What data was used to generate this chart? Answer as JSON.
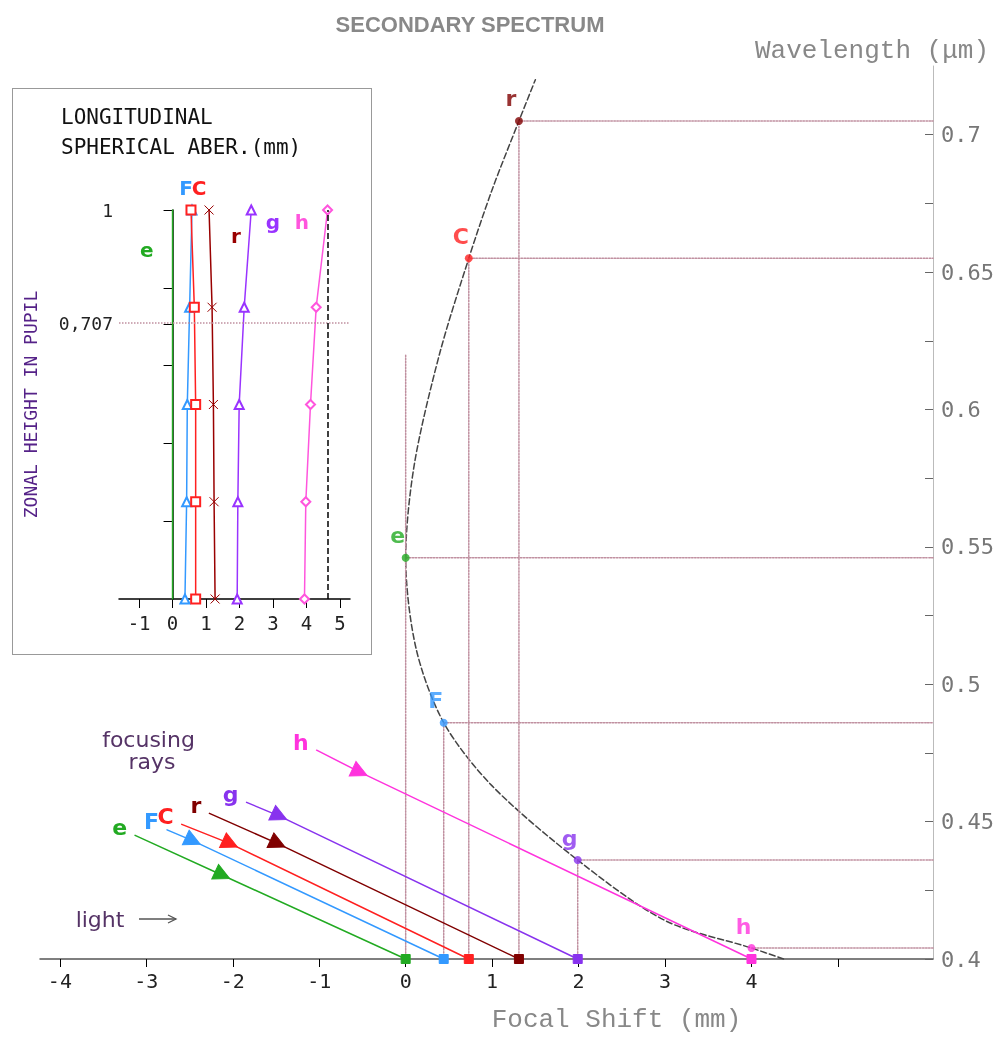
{
  "chart_data": [
    {
      "type": "line",
      "title": "SECONDARY SPECTRUM",
      "xlabel": "Focal Shift (mm)",
      "ylabel": "Wavelength (μm)",
      "xlim": [
        -4.23,
        6.1
      ],
      "xticks": [
        -4,
        -3,
        -2,
        -1,
        0,
        1,
        2,
        3,
        4,
        {
          "value": 5,
          "label": null
        }
      ],
      "ylim": [
        0.4,
        0.725
      ],
      "yticks": [
        0.4,
        {
          "value": 0.425,
          "label": null
        },
        0.45,
        {
          "value": 0.475,
          "label": null
        },
        0.5,
        {
          "value": 0.525,
          "label": null
        },
        0.55,
        {
          "value": 0.575,
          "label": null
        },
        0.6,
        {
          "value": 0.625,
          "label": null
        },
        0.65,
        {
          "value": 0.675,
          "label": null
        },
        0.7
      ],
      "grid": false,
      "legend": false,
      "annotations": [
        "focusing rays",
        "light"
      ],
      "series": [
        {
          "type": "line",
          "color": "#444444",
          "line_style": "dashed",
          "marker": "none",
          "x": [
            4.37,
            4.0,
            3.0,
            1.99,
            1.0,
            0.44,
            0.12,
            0.0,
            0.1,
            0.39,
            0.73,
            1.0,
            1.31,
            1.5
          ],
          "values": [
            0.4,
            0.404,
            0.414,
            0.436,
            0.463,
            0.486,
            0.513,
            0.546,
            0.58,
            0.62,
            0.655,
            0.68,
            0.705,
            0.72
          ]
        },
        {
          "type": "line",
          "color": "#c090a0",
          "line_style": "dotted",
          "marker": "none",
          "x": [
            1.31,
            1.31,
            6.1
          ],
          "values": [
            0.4,
            0.705,
            0.705
          ]
        },
        {
          "type": "line",
          "color": "#c090a0",
          "line_style": "dotted",
          "marker": "none",
          "x": [
            0.73,
            0.73,
            6.1
          ],
          "values": [
            0.4,
            0.655,
            0.655
          ]
        },
        {
          "type": "line",
          "color": "#c090a0",
          "line_style": "dotted",
          "marker": "none",
          "x": [
            0,
            0,
            6.1
          ],
          "values": [
            0.4,
            0.546,
            0.546
          ]
        },
        {
          "type": "line",
          "color": "#c090a0",
          "line_style": "dotted",
          "marker": "none",
          "x": [
            0,
            0
          ],
          "values": [
            0.546,
            0.62
          ]
        },
        {
          "type": "line",
          "color": "#c090a0",
          "line_style": "dotted",
          "marker": "none",
          "x": [
            0.44,
            0.44,
            6.1
          ],
          "values": [
            0.4,
            0.486,
            0.486
          ]
        },
        {
          "type": "line",
          "color": "#c090a0",
          "line_style": "dotted",
          "marker": "none",
          "x": [
            1.99,
            1.99,
            6.1
          ],
          "values": [
            0.4,
            0.436,
            0.436
          ]
        },
        {
          "type": "line",
          "color": "#c090a0",
          "line_style": "dotted",
          "marker": "none",
          "x": [
            4.0,
            6.1
          ],
          "values": [
            0.404,
            0.404
          ]
        },
        {
          "type": "scatter",
          "name": "r",
          "color": "#800000",
          "marker": "circle",
          "x": [
            1.31
          ],
          "values": [
            0.705
          ]
        },
        {
          "type": "scatter",
          "name": "C",
          "color": "#ff2020",
          "marker": "circle",
          "x": [
            0.73
          ],
          "values": [
            0.655
          ]
        },
        {
          "type": "scatter",
          "name": "e",
          "color": "#22aa22",
          "marker": "circle",
          "x": [
            0
          ],
          "values": [
            0.546
          ]
        },
        {
          "type": "scatter",
          "name": "F",
          "color": "#3399ff",
          "marker": "circle",
          "x": [
            0.44
          ],
          "values": [
            0.486
          ]
        },
        {
          "type": "scatter",
          "name": "g",
          "color": "#8833ee",
          "marker": "circle",
          "x": [
            1.99
          ],
          "values": [
            0.436
          ]
        },
        {
          "type": "scatter",
          "name": "h",
          "color": "#ff33dd",
          "marker": "circle",
          "x": [
            4.0
          ],
          "values": [
            0.404
          ]
        },
        {
          "type": "line",
          "name": "e",
          "color": "#22aa22",
          "marker": "triangle",
          "x": [
            -3.13,
            -2.12,
            0
          ],
          "values": [
            0.445,
            0.4305,
            0.4
          ]
        },
        {
          "type": "line",
          "name": "F",
          "color": "#3399ff",
          "marker": "triangle",
          "x": [
            -2.76,
            -2.46,
            0.44
          ],
          "values": [
            0.447,
            0.443,
            0.4
          ]
        },
        {
          "type": "line",
          "name": "C",
          "color": "#ff2020",
          "marker": "triangle",
          "x": [
            -2.59,
            -2.03,
            0.73
          ],
          "values": [
            0.449,
            0.442,
            0.4
          ]
        },
        {
          "type": "line",
          "name": "r",
          "color": "#800000",
          "marker": "triangle",
          "x": [
            -2.27,
            -1.48,
            1.31
          ],
          "values": [
            0.453,
            0.442,
            0.4
          ]
        },
        {
          "type": "line",
          "name": "g",
          "color": "#8833ee",
          "marker": "triangle",
          "x": [
            -1.84,
            -1.46,
            1.99
          ],
          "values": [
            0.457,
            0.452,
            0.4
          ]
        },
        {
          "type": "line",
          "name": "h",
          "color": "#ff33dd",
          "marker": "triangle",
          "x": [
            -1.03,
            -0.53,
            4.0
          ],
          "values": [
            0.476,
            0.468,
            0.4
          ]
        }
      ]
    },
    {
      "type": "line",
      "title": "LONGITUDINAL SPHERICAL ABER.(mm)",
      "ylabel": "ZONAL HEIGHT IN PUPIL",
      "xlim": [
        -1.6,
        5.3
      ],
      "xticks": [
        -1,
        0,
        1,
        2,
        3,
        4,
        5
      ],
      "ylim": [
        0,
        1
      ],
      "yticks": [
        {
          "value": 0.2,
          "label": null
        },
        {
          "value": 0.4,
          "label": null
        },
        {
          "value": 0.6,
          "label": null
        },
        {
          "value": 0.707,
          "label": "0,707"
        },
        {
          "value": 0.8,
          "label": null
        },
        1
      ],
      "grid": false,
      "legend": false,
      "ref_lines": [
        {
          "axis": "y",
          "value": 0.707,
          "color": "#c090a0",
          "line_style": "dotted"
        },
        {
          "axis": "x",
          "value": 4.65,
          "color": "#000000",
          "line_style": "dashed"
        }
      ],
      "series": [
        {
          "name": "e",
          "color": "#22aa22",
          "marker": "none",
          "x": [
            0,
            0,
            0,
            0,
            0
          ],
          "values": [
            0,
            0.25,
            0.5,
            0.75,
            1
          ]
        },
        {
          "name": "F",
          "color": "#3399ff",
          "marker": "triangle",
          "x": [
            0.37,
            0.42,
            0.44,
            0.51,
            0.58
          ],
          "values": [
            0,
            0.25,
            0.5,
            0.75,
            1
          ]
        },
        {
          "name": "C",
          "color": "#ff2020",
          "marker": "square",
          "x": [
            0.69,
            0.69,
            0.69,
            0.65,
            0.55
          ],
          "values": [
            0,
            0.25,
            0.5,
            0.75,
            1
          ]
        },
        {
          "name": "r",
          "color": "#990000",
          "marker": "cross",
          "x": [
            1.27,
            1.24,
            1.22,
            1.18,
            1.09
          ],
          "values": [
            0,
            0.25,
            0.5,
            0.75,
            1
          ]
        },
        {
          "name": "g",
          "color": "#9933ff",
          "marker": "triangle",
          "x": [
            1.93,
            1.95,
            1.99,
            2.14,
            2.35
          ],
          "values": [
            0,
            0.25,
            0.5,
            0.75,
            1
          ]
        },
        {
          "name": "h",
          "color": "#ff55dd",
          "marker": "diamond",
          "x": [
            3.94,
            3.98,
            4.12,
            4.29,
            4.63
          ],
          "values": [
            0,
            0.25,
            0.5,
            0.75,
            1
          ]
        }
      ]
    }
  ]
}
